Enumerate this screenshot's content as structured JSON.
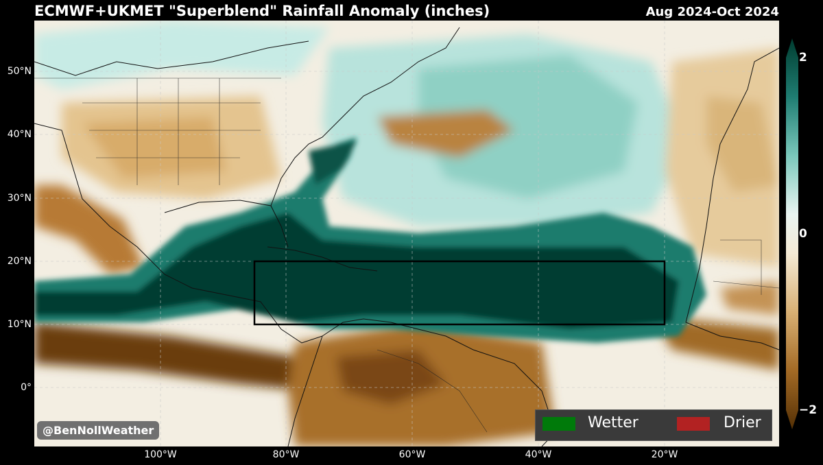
{
  "title": "ECMWF+UKMET \"Superblend\" Rainfall Anomaly (inches)",
  "period": "Aug 2024-Oct 2024",
  "watermark": "@BenNollWeather",
  "latitude_labels": [
    "50°N",
    "40°N",
    "30°N",
    "20°N",
    "10°N",
    "0°"
  ],
  "longitude_labels": [
    "100°W",
    "80°W",
    "60°W",
    "40°W",
    "20°W"
  ],
  "colorbar": {
    "max_label": "2",
    "mid_label": "0",
    "min_label": "−2",
    "wet_color": "#003c30",
    "neutral_color": "#f5f5f5",
    "dry_color": "#543005"
  },
  "legend": {
    "wetter_label": "Wetter",
    "wetter_color": "#007a0a",
    "drier_label": "Drier",
    "drier_color": "#b22222"
  },
  "highlight_box": {
    "lat_range": [
      "10°N",
      "20°N"
    ],
    "lon_range": [
      "85°W",
      "20°W"
    ]
  }
}
